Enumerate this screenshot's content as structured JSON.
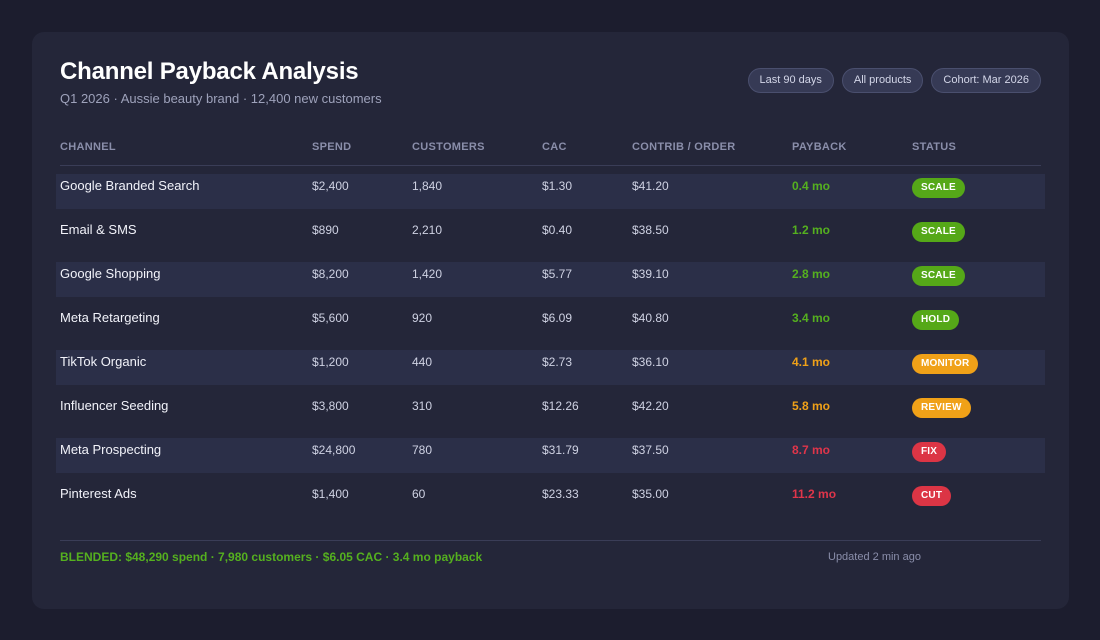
{
  "header": {
    "title": "Channel Payback Analysis",
    "subtitle": "Q1 2026 · Aussie beauty brand · 12,400 new customers",
    "filters": [
      "Last 90 days",
      "All products",
      "Cohort: Mar 2026"
    ]
  },
  "table": {
    "columns": [
      "CHANNEL",
      "SPEND",
      "CUSTOMERS",
      "CAC",
      "CONTRIB / ORDER",
      "PAYBACK",
      "STATUS"
    ],
    "rows": [
      {
        "channel": "Google Branded Search",
        "spend": "$2,400",
        "customers": "1,840",
        "cac": "$1.30",
        "contrib": "$41.20",
        "payback": "0.4 mo",
        "status": "SCALE",
        "payback_color": "#55b01f",
        "status_color": "#55a818"
      },
      {
        "channel": "Email & SMS",
        "spend": "$890",
        "customers": "2,210",
        "cac": "$0.40",
        "contrib": "$38.50",
        "payback": "1.2 mo",
        "status": "SCALE",
        "payback_color": "#55b01f",
        "status_color": "#55a818"
      },
      {
        "channel": "Google Shopping",
        "spend": "$8,200",
        "customers": "1,420",
        "cac": "$5.77",
        "contrib": "$39.10",
        "payback": "2.8 mo",
        "status": "SCALE",
        "payback_color": "#55b01f",
        "status_color": "#55a818"
      },
      {
        "channel": "Meta Retargeting",
        "spend": "$5,600",
        "customers": "920",
        "cac": "$6.09",
        "contrib": "$40.80",
        "payback": "3.4 mo",
        "status": "HOLD",
        "payback_color": "#55b01f",
        "status_color": "#55a818"
      },
      {
        "channel": "TikTok Organic",
        "spend": "$1,200",
        "customers": "440",
        "cac": "$2.73",
        "contrib": "$36.10",
        "payback": "4.1 mo",
        "status": "MONITOR",
        "payback_color": "#f0a118",
        "status_color": "#f0a118"
      },
      {
        "channel": "Influencer Seeding",
        "spend": "$3,800",
        "customers": "310",
        "cac": "$12.26",
        "contrib": "$42.20",
        "payback": "5.8 mo",
        "status": "REVIEW",
        "payback_color": "#f0a118",
        "status_color": "#f0a118"
      },
      {
        "channel": "Meta Prospecting",
        "spend": "$24,800",
        "customers": "780",
        "cac": "$31.79",
        "contrib": "$37.50",
        "payback": "8.7 mo",
        "status": "FIX",
        "payback_color": "#e0354a",
        "status_color": "#dc3545"
      },
      {
        "channel": "Pinterest Ads",
        "spend": "$1,400",
        "customers": "60",
        "cac": "$23.33",
        "contrib": "$35.00",
        "payback": "11.2 mo",
        "status": "CUT",
        "payback_color": "#e0354a",
        "status_color": "#dc3545"
      }
    ]
  },
  "footer": {
    "blended": "BLENDED: $48,290 spend · 7,980 customers · $6.05 CAC · 3.4 mo payback",
    "updated": "Updated 2 min ago"
  },
  "colors": {
    "background": "#1c1d2e",
    "card": "#242639",
    "row_alt": "#2b2f48",
    "good": "#55b01f",
    "warn": "#f0a118",
    "bad": "#dc3545"
  }
}
